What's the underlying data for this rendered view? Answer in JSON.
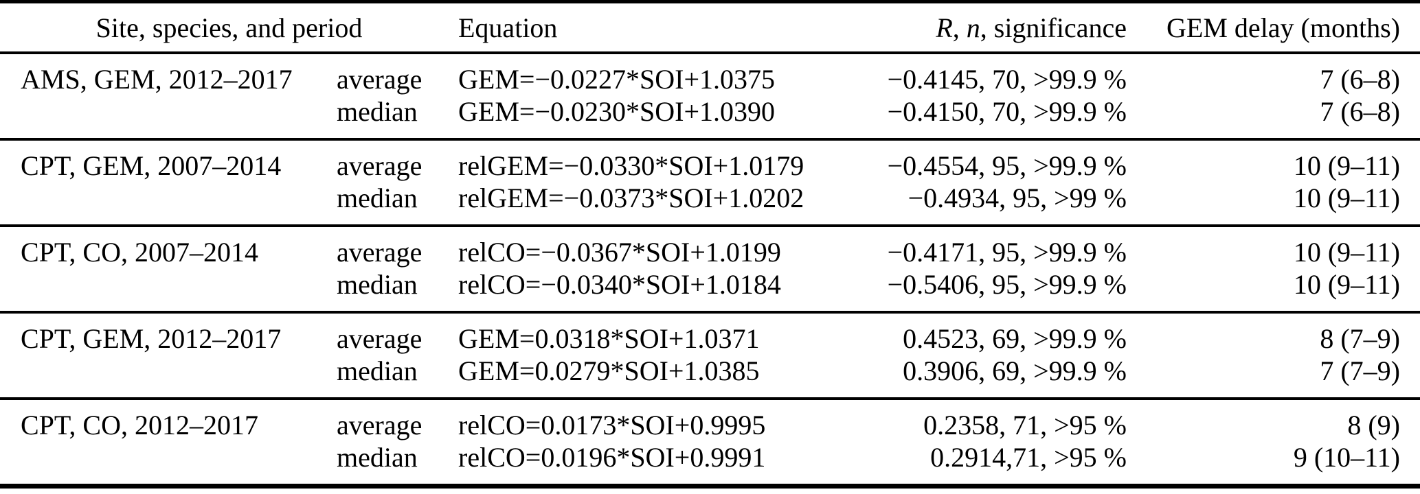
{
  "colors": {
    "background": "#ffffff",
    "text": "#000000",
    "rule": "#000000"
  },
  "headers": {
    "site": "Site, species, and period",
    "equation": "Equation",
    "r": "R",
    "n": "n",
    "sep": ", ",
    "significance": "significance",
    "delay": "GEM delay (months)"
  },
  "groups": [
    {
      "site": "AMS, GEM, 2012–2017",
      "rows": [
        {
          "stat": "average",
          "equation": "GEM=−0.0227*SOI+1.0375",
          "r_n_sig": "−0.4145, 70, >99.9 %",
          "delay": "7 (6–8)"
        },
        {
          "stat": "median",
          "equation": "GEM=−0.0230*SOI+1.0390",
          "r_n_sig": "−0.4150, 70, >99.9 %",
          "delay": "7 (6–8)"
        }
      ]
    },
    {
      "site": "CPT, GEM, 2007–2014",
      "rows": [
        {
          "stat": "average",
          "equation": "relGEM=−0.0330*SOI+1.0179",
          "r_n_sig": "−0.4554, 95, >99.9 %",
          "delay": "10 (9–11)"
        },
        {
          "stat": "median",
          "equation": "relGEM=−0.0373*SOI+1.0202",
          "r_n_sig": "−0.4934, 95, >99 %",
          "delay": "10 (9–11)"
        }
      ]
    },
    {
      "site": "CPT, CO, 2007–2014",
      "rows": [
        {
          "stat": "average",
          "equation": "relCO=−0.0367*SOI+1.0199",
          "r_n_sig": "−0.4171, 95, >99.9 %",
          "delay": "10 (9–11)"
        },
        {
          "stat": "median",
          "equation": "relCO=−0.0340*SOI+1.0184",
          "r_n_sig": "−0.5406, 95, >99.9 %",
          "delay": "10 (9–11)"
        }
      ]
    },
    {
      "site": "CPT, GEM, 2012–2017",
      "rows": [
        {
          "stat": "average",
          "equation": "GEM=0.0318*SOI+1.0371",
          "r_n_sig": "0.4523, 69, >99.9 %",
          "delay": "8 (7–9)"
        },
        {
          "stat": "median",
          "equation": "GEM=0.0279*SOI+1.0385",
          "r_n_sig": "0.3906, 69, >99.9 %",
          "delay": "7 (7–9)"
        }
      ]
    },
    {
      "site": "CPT, CO, 2012–2017",
      "rows": [
        {
          "stat": "average",
          "equation": "relCO=0.0173*SOI+0.9995",
          "r_n_sig": "0.2358, 71, >95 %",
          "delay": "8 (9)"
        },
        {
          "stat": "median",
          "equation": "relCO=0.0196*SOI+0.9991",
          "r_n_sig": "0.2914,71, >95 %",
          "delay": "9 (10–11)"
        }
      ]
    }
  ]
}
